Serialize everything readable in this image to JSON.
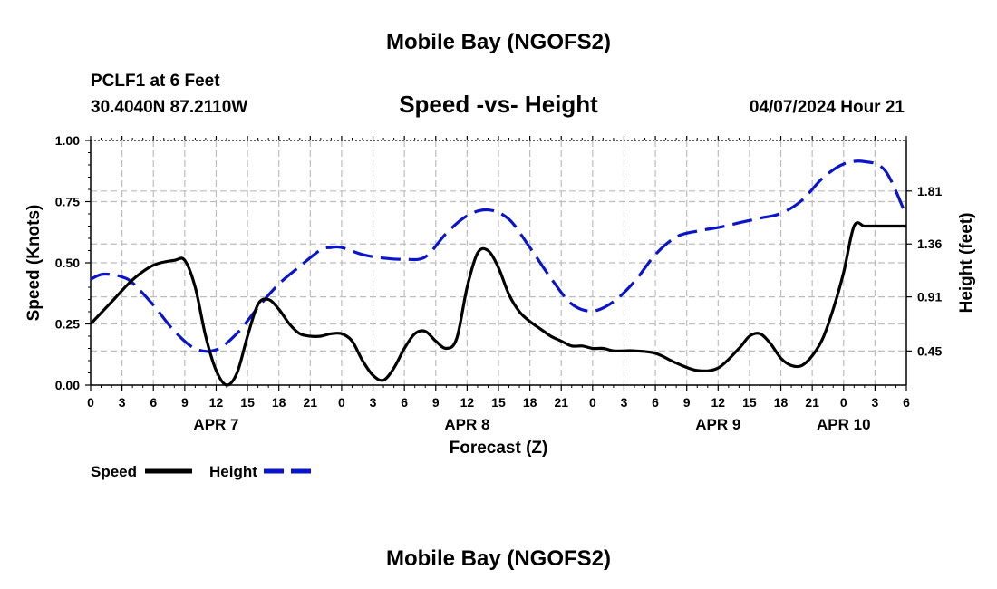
{
  "chart_data": {
    "type": "line",
    "title": "Mobile Bay (NGOFS2)",
    "subtitle": "Speed -vs- Height",
    "station": "PCLF1 at 6 Feet",
    "coords": "30.4040N  87.2110W",
    "datetime": "04/07/2024 Hour 21",
    "xlabel": "Forecast (Z)",
    "ylabel_left": "Speed (Knots)",
    "ylabel_right": "Height (feet)",
    "x_range": [
      0,
      78
    ],
    "ylim_left": [
      0,
      1
    ],
    "ylim_right": [
      0.16,
      2.24
    ],
    "x_tick_labels": [
      "0",
      "3",
      "6",
      "9",
      "12",
      "15",
      "18",
      "21",
      "0",
      "3",
      "6",
      "9",
      "12",
      "15",
      "18",
      "21",
      "0",
      "3",
      "6",
      "9",
      "12",
      "15",
      "18",
      "21",
      "0",
      "3",
      "6"
    ],
    "date_labels": [
      {
        "label": "APR 7",
        "x": 12
      },
      {
        "label": "APR 8",
        "x": 36
      },
      {
        "label": "APR 9",
        "x": 60
      },
      {
        "label": "APR 10",
        "x": 72
      }
    ],
    "y_left_ticks": [
      0,
      0.25,
      0.5,
      0.75,
      1.0
    ],
    "y_left_tick_labels": [
      "0.00",
      "0.25",
      "0.50",
      "0.75",
      "1.00"
    ],
    "y_right_ticks": [
      0.45,
      0.91,
      1.36,
      1.81
    ],
    "y_right_tick_labels": [
      "0.45",
      "0.91",
      "1.36",
      "1.81"
    ],
    "grid": true,
    "series": [
      {
        "name": "Speed",
        "axis": "left",
        "color": "#000000",
        "style": "solid",
        "x": [
          0,
          2,
          4,
          6,
          8,
          9,
          10,
          11,
          12,
          13,
          14,
          15,
          16,
          17,
          18,
          19,
          20,
          21,
          22,
          23,
          24,
          25,
          26,
          27,
          28,
          29,
          30,
          31,
          32,
          33,
          34,
          35,
          36,
          37,
          38,
          39,
          40,
          41,
          42,
          43,
          44,
          45,
          46,
          47,
          48,
          49,
          50,
          51,
          52,
          54,
          56,
          58,
          60,
          62,
          63,
          64,
          65,
          66,
          67,
          68,
          69,
          70,
          71,
          72,
          73,
          74,
          75,
          76,
          77,
          78
        ],
        "y": [
          0.25,
          0.34,
          0.43,
          0.49,
          0.51,
          0.51,
          0.4,
          0.2,
          0.06,
          0.0,
          0.05,
          0.2,
          0.33,
          0.35,
          0.31,
          0.25,
          0.21,
          0.2,
          0.2,
          0.21,
          0.21,
          0.18,
          0.1,
          0.04,
          0.02,
          0.07,
          0.15,
          0.21,
          0.22,
          0.18,
          0.15,
          0.19,
          0.4,
          0.54,
          0.55,
          0.48,
          0.37,
          0.3,
          0.26,
          0.23,
          0.2,
          0.18,
          0.16,
          0.16,
          0.15,
          0.15,
          0.14,
          0.14,
          0.14,
          0.13,
          0.09,
          0.06,
          0.07,
          0.15,
          0.2,
          0.21,
          0.17,
          0.11,
          0.08,
          0.08,
          0.12,
          0.19,
          0.31,
          0.46,
          0.65,
          0.65,
          0.65,
          0.65,
          0.65,
          0.65
        ]
      },
      {
        "name": "Height",
        "axis": "right",
        "color": "#0a14c8",
        "style": "dashed",
        "x": [
          0,
          1,
          2,
          3,
          4,
          6,
          8,
          10,
          12,
          14,
          16,
          18,
          20,
          22,
          23,
          24,
          26,
          28,
          30,
          32,
          34,
          36,
          38,
          40,
          42,
          44,
          46,
          48,
          50,
          52,
          54,
          56,
          58,
          60,
          62,
          64,
          66,
          68,
          70,
          72,
          74,
          76,
          78
        ],
        "y": [
          1.06,
          1.1,
          1.1,
          1.08,
          1.03,
          0.84,
          0.62,
          0.47,
          0.46,
          0.6,
          0.82,
          1.02,
          1.17,
          1.31,
          1.33,
          1.33,
          1.27,
          1.24,
          1.23,
          1.25,
          1.45,
          1.6,
          1.65,
          1.57,
          1.33,
          1.07,
          0.85,
          0.79,
          0.87,
          1.04,
          1.27,
          1.42,
          1.47,
          1.5,
          1.54,
          1.58,
          1.62,
          1.73,
          1.92,
          2.04,
          2.06,
          1.98,
          1.6
        ]
      }
    ],
    "legend": [
      {
        "label": "Speed",
        "color": "#000000",
        "style": "solid"
      },
      {
        "label": "Height",
        "color": "#0a14c8",
        "style": "dashed"
      }
    ]
  }
}
